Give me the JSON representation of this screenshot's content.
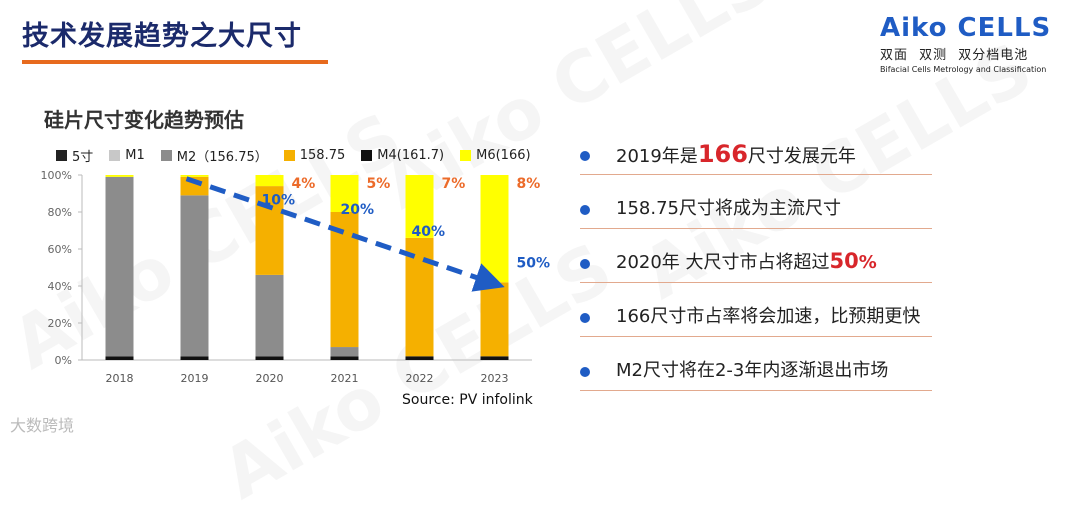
{
  "header": {
    "title": "技术发展趋势之大尺寸"
  },
  "logo": {
    "brand": "Aiko CELLS",
    "line1": "双面 双测 双分档电池",
    "line2": "Bifacial Cells Metrology and Classification"
  },
  "watermark_text": "Aiko CELLS",
  "footer_mark": "大数跨境",
  "chart_data": {
    "type": "bar",
    "stacked": true,
    "title": "硅片尺寸变化趋势预估",
    "categories": [
      "2018",
      "2019",
      "2020",
      "2021",
      "2022",
      "2023"
    ],
    "ylim": [
      0,
      100
    ],
    "yticks": [
      "0%",
      "20%",
      "40%",
      "60%",
      "80%",
      "100%"
    ],
    "series": [
      {
        "name": "5寸",
        "color": "#222222",
        "values": [
          0,
          0,
          0,
          0,
          0,
          0
        ]
      },
      {
        "name": "M1",
        "color": "#c8c8c8",
        "values": [
          0,
          0,
          0,
          0,
          0,
          0
        ]
      },
      {
        "name": "M2（156.75）",
        "color": "#8c8c8c",
        "values": [
          97,
          87,
          44,
          5,
          0,
          0
        ]
      },
      {
        "name": "158.75",
        "color": "#f5b000",
        "values": [
          0,
          10,
          48,
          73,
          64,
          40
        ]
      },
      {
        "name": "M4(161.7)",
        "color": "#111111",
        "values": [
          2,
          2,
          2,
          2,
          2,
          2
        ]
      },
      {
        "name": "M6(166)",
        "color": "#ffff00",
        "values": [
          1,
          1,
          6,
          20,
          34,
          58
        ]
      }
    ],
    "annotations": [
      {
        "text": "4%",
        "color": "#ec6b2a"
      },
      {
        "text": "5%",
        "color": "#ec6b2a"
      },
      {
        "text": "7%",
        "color": "#ec6b2a"
      },
      {
        "text": "8%",
        "color": "#ec6b2a"
      },
      {
        "text": "10%",
        "color": "#1f5cc4"
      },
      {
        "text": "20%",
        "color": "#1f5cc4"
      },
      {
        "text": "40%",
        "color": "#1f5cc4"
      },
      {
        "text": "50%",
        "color": "#1f5cc4"
      }
    ],
    "trend_color": "#1f5cc4",
    "source": "Source: PV infolink"
  },
  "bullets": [
    {
      "pre": "2019年是",
      "hl": "166",
      "post": "尺寸发展元年"
    },
    {
      "pre": "158.75尺寸将成为主流尺寸",
      "hl": "",
      "post": ""
    },
    {
      "pre": "2020年 大尺寸市占将超过",
      "hl": "50",
      "post": "%"
    },
    {
      "pre": "166尺寸市占率将会加速，比预期更快",
      "hl": "",
      "post": ""
    },
    {
      "pre": "M2尺寸将在2-3年内逐渐退出市场",
      "hl": "",
      "post": ""
    }
  ]
}
